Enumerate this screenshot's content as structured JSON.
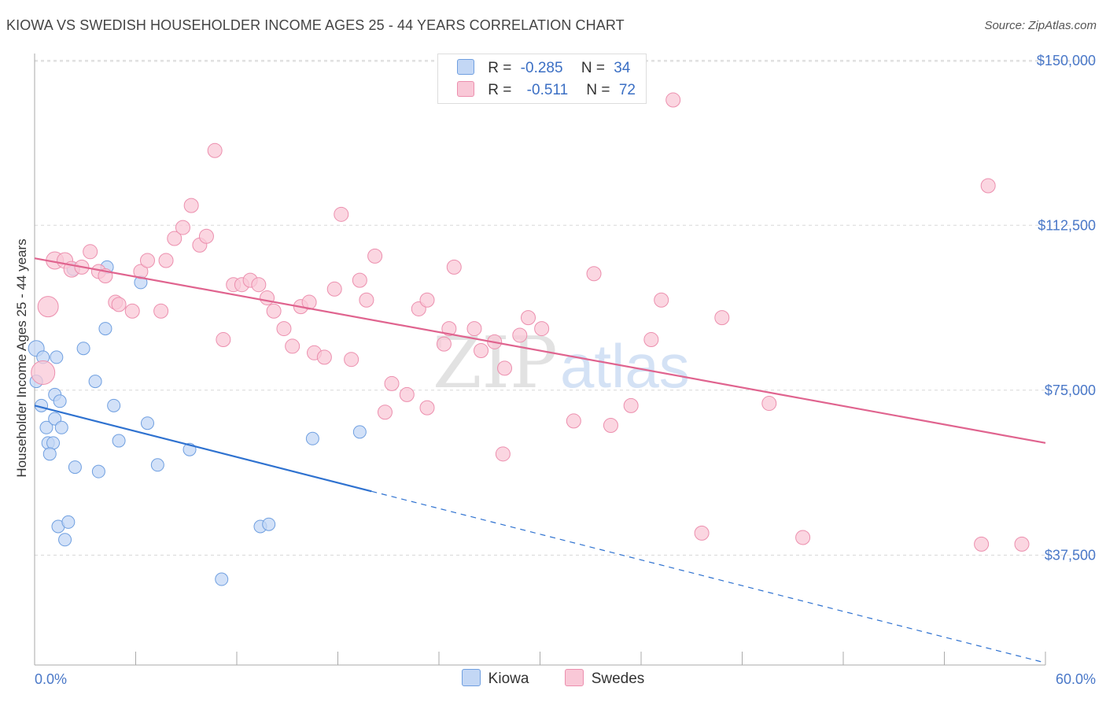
{
  "title": "KIOWA VS SWEDISH HOUSEHOLDER INCOME AGES 25 - 44 YEARS CORRELATION CHART",
  "source": "Source: ZipAtlas.com",
  "watermark": {
    "zip": "ZIP",
    "atlas": "atlas"
  },
  "legend": {
    "rows": [
      {
        "r_label": "R =",
        "r_value": "-0.285",
        "n_label": "N =",
        "n_value": "34",
        "color": "#a9c7f0"
      },
      {
        "r_label": "R =",
        "r_value": "-0.511",
        "n_label": "N =",
        "n_value": "72",
        "color": "#f7b6cb"
      }
    ]
  },
  "bottom_legend": {
    "kiowa": "Kiowa",
    "swedes": "Swedes"
  },
  "chart_data": {
    "type": "scatter",
    "title": "KIOWA VS SWEDISH HOUSEHOLDER INCOME AGES 25 - 44 YEARS CORRELATION CHART",
    "xlabel": "",
    "ylabel": "Householder Income Ages 25 - 44 years",
    "xlim": [
      0,
      60
    ],
    "ylim": [
      12500,
      153000
    ],
    "x_tick_labels": [
      "0.0%",
      "60.0%"
    ],
    "y_ticks": [
      37500,
      75000,
      112500,
      150000
    ],
    "y_tick_labels": [
      "$37,500",
      "$75,000",
      "$112,500",
      "$150,000"
    ],
    "grid": "horizontal dashed",
    "legend_position": "top-center",
    "series": [
      {
        "name": "Kiowa",
        "color": "#6f9fe0",
        "fill": "#c3d7f5",
        "line_color": "#2f72d0",
        "trend": {
          "x0": 0,
          "y0": 71500,
          "x1": 20,
          "y1": 52000,
          "dashed_to_x": 60,
          "dashed_to_y": 13000
        },
        "points": [
          [
            0.1,
            84500,
            10
          ],
          [
            0.5,
            82500,
            8
          ],
          [
            1.3,
            82500,
            8
          ],
          [
            2.9,
            84500,
            8
          ],
          [
            0.1,
            77000,
            8
          ],
          [
            3.6,
            77000,
            8
          ],
          [
            0.4,
            71500,
            8
          ],
          [
            1.2,
            74000,
            8
          ],
          [
            1.5,
            72500,
            8
          ],
          [
            0.7,
            66500,
            8
          ],
          [
            1.2,
            68500,
            8
          ],
          [
            1.6,
            66500,
            8
          ],
          [
            0.8,
            63000,
            8
          ],
          [
            1.1,
            63000,
            8
          ],
          [
            0.9,
            60500,
            8
          ],
          [
            2.4,
            57500,
            8
          ],
          [
            3.8,
            56500,
            8
          ],
          [
            4.7,
            71500,
            8
          ],
          [
            5.0,
            63500,
            8
          ],
          [
            6.7,
            67500,
            8
          ],
          [
            7.3,
            58000,
            8
          ],
          [
            9.2,
            61500,
            8
          ],
          [
            4.2,
            89000,
            8
          ],
          [
            6.3,
            99500,
            8
          ],
          [
            2.3,
            102500,
            8
          ],
          [
            4.3,
            103000,
            8
          ],
          [
            1.4,
            44000,
            8
          ],
          [
            2.0,
            45000,
            8
          ],
          [
            1.8,
            41000,
            8
          ],
          [
            13.4,
            44000,
            8
          ],
          [
            13.9,
            44500,
            8
          ],
          [
            11.1,
            32000,
            8
          ],
          [
            16.5,
            64000,
            8
          ],
          [
            19.3,
            65500,
            8
          ]
        ]
      },
      {
        "name": "Swedes",
        "color": "#ec8fae",
        "fill": "#f9c8d7",
        "line_color": "#e0648f",
        "trend": {
          "x0": 0,
          "y0": 105000,
          "x1": 60,
          "y1": 63000
        },
        "points": [
          [
            0.5,
            79000,
            15
          ],
          [
            0.8,
            94000,
            13
          ],
          [
            1.2,
            104500,
            11
          ],
          [
            1.8,
            104500,
            10
          ],
          [
            2.2,
            102500,
            10
          ],
          [
            2.8,
            103000,
            9
          ],
          [
            3.3,
            106500,
            9
          ],
          [
            3.8,
            102000,
            9
          ],
          [
            4.2,
            101000,
            9
          ],
          [
            4.8,
            95000,
            9
          ],
          [
            5.0,
            94500,
            9
          ],
          [
            5.8,
            93000,
            9
          ],
          [
            6.3,
            102000,
            9
          ],
          [
            6.7,
            104500,
            9
          ],
          [
            7.5,
            93000,
            9
          ],
          [
            7.8,
            104500,
            9
          ],
          [
            8.3,
            109500,
            9
          ],
          [
            8.8,
            112000,
            9
          ],
          [
            9.3,
            117000,
            9
          ],
          [
            9.8,
            108000,
            9
          ],
          [
            10.2,
            110000,
            9
          ],
          [
            10.7,
            129500,
            9
          ],
          [
            11.2,
            86500,
            9
          ],
          [
            11.8,
            99000,
            9
          ],
          [
            12.3,
            99000,
            9
          ],
          [
            12.8,
            100000,
            9
          ],
          [
            13.3,
            99000,
            9
          ],
          [
            13.8,
            96000,
            9
          ],
          [
            14.2,
            93000,
            9
          ],
          [
            14.8,
            89000,
            9
          ],
          [
            15.3,
            85000,
            9
          ],
          [
            15.8,
            94000,
            9
          ],
          [
            16.3,
            95000,
            9
          ],
          [
            16.6,
            83500,
            9
          ],
          [
            17.2,
            82500,
            9
          ],
          [
            17.8,
            98000,
            9
          ],
          [
            18.2,
            115000,
            9
          ],
          [
            18.8,
            82000,
            9
          ],
          [
            19.3,
            100000,
            9
          ],
          [
            19.7,
            95500,
            9
          ],
          [
            20.2,
            105500,
            9
          ],
          [
            20.8,
            70000,
            9
          ],
          [
            21.2,
            76500,
            9
          ],
          [
            22.1,
            74000,
            9
          ],
          [
            22.8,
            93500,
            9
          ],
          [
            23.3,
            71000,
            9
          ],
          [
            23.3,
            95500,
            9
          ],
          [
            24.3,
            85500,
            9
          ],
          [
            24.6,
            89000,
            9
          ],
          [
            24.9,
            103000,
            9
          ],
          [
            26.1,
            89000,
            9
          ],
          [
            26.5,
            84000,
            9
          ],
          [
            27.3,
            86000,
            9
          ],
          [
            27.9,
            80000,
            9
          ],
          [
            27.8,
            60500,
            9
          ],
          [
            28.8,
            87500,
            9
          ],
          [
            29.3,
            91500,
            9
          ],
          [
            30.1,
            89000,
            9
          ],
          [
            32.0,
            68000,
            9
          ],
          [
            33.2,
            101500,
            9
          ],
          [
            34.2,
            67000,
            9
          ],
          [
            35.4,
            71500,
            9
          ],
          [
            36.6,
            86500,
            9
          ],
          [
            37.2,
            95500,
            9
          ],
          [
            37.9,
            141000,
            9
          ],
          [
            39.6,
            42500,
            9
          ],
          [
            40.8,
            91500,
            9
          ],
          [
            43.6,
            72000,
            9
          ],
          [
            45.6,
            41500,
            9
          ],
          [
            56.2,
            40000,
            9
          ],
          [
            56.6,
            121500,
            9
          ],
          [
            58.6,
            40000,
            9
          ]
        ]
      }
    ]
  }
}
